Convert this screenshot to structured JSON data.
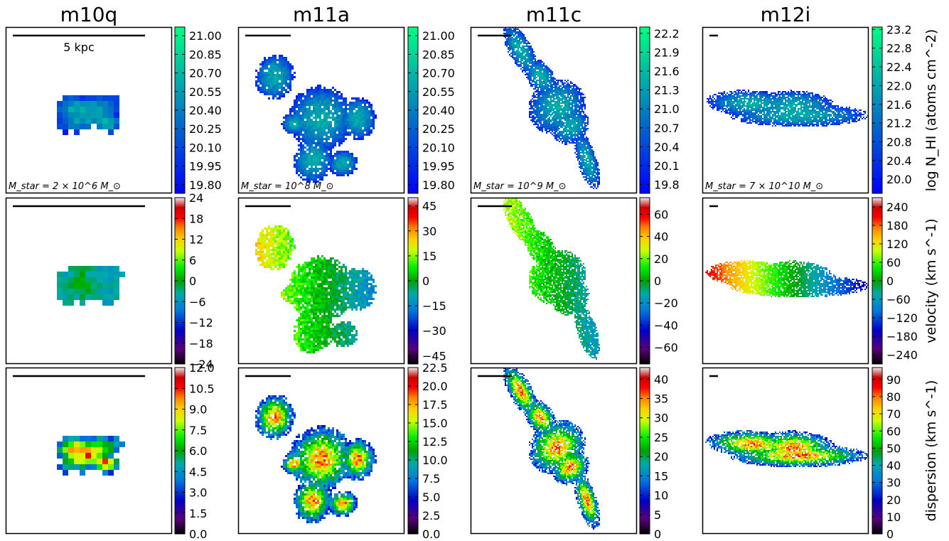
{
  "chart_data": {
    "type": "heatmap",
    "columns": [
      {
        "title": "m10q",
        "stellar_mass_label": "M_star = 2 × 10^6 M_⊙",
        "scalebar_label": "5 kpc"
      },
      {
        "title": "m11a",
        "stellar_mass_label": "M_star = 10^8 M_⊙"
      },
      {
        "title": "m11c",
        "stellar_mass_label": "M_star = 10^9 M_⊙"
      },
      {
        "title": "m12i",
        "stellar_mass_label": "M_star = 7 × 10^10 M_⊙"
      }
    ],
    "rows": [
      {
        "quantity": "column density",
        "colorbar_label": "log N_HI (atoms cm^-2)",
        "colormap": "winter",
        "colorbars": [
          {
            "min": 19.73,
            "max": 21.07,
            "ticks": [
              "21.00",
              "20.85",
              "20.70",
              "20.55",
              "20.40",
              "20.25",
              "20.10",
              "19.95",
              "19.80"
            ]
          },
          {
            "min": 19.73,
            "max": 21.07,
            "ticks": [
              "21.00",
              "20.85",
              "20.70",
              "20.55",
              "20.40",
              "20.25",
              "20.10",
              "19.95",
              "19.80"
            ]
          },
          {
            "min": 19.66,
            "max": 22.3,
            "ticks": [
              "22.2",
              "21.9",
              "21.6",
              "21.3",
              "21.0",
              "20.7",
              "20.4",
              "20.1",
              "19.8"
            ]
          },
          {
            "min": 19.7,
            "max": 23.25,
            "ticks": [
              "23.2",
              "22.8",
              "22.4",
              "22.0",
              "21.6",
              "21.2",
              "20.8",
              "20.4",
              "20.0"
            ]
          }
        ]
      },
      {
        "quantity": "velocity",
        "colorbar_label": "velocity (km s^-1)",
        "colormap": "nipy_spectral",
        "colorbars": [
          {
            "min": -24,
            "max": 24,
            "ticks": [
              "24",
              "18",
              "12",
              "6",
              "0",
              "−6",
              "−12",
              "−18",
              "−24"
            ]
          },
          {
            "min": -50,
            "max": 50,
            "ticks": [
              "45",
              "30",
              "15",
              "0",
              "−15",
              "−30",
              "−45"
            ]
          },
          {
            "min": -75,
            "max": 75,
            "ticks": [
              "60",
              "40",
              "20",
              "0",
              "−20",
              "−40",
              "−60"
            ]
          },
          {
            "min": -270,
            "max": 270,
            "ticks": [
              "240",
              "180",
              "120",
              "60",
              "0",
              "−60",
              "−120",
              "−180",
              "−240"
            ]
          }
        ]
      },
      {
        "quantity": "dispersion",
        "colorbar_label": "dispersion (km s^-1)",
        "colormap": "nipy_spectral",
        "colorbars": [
          {
            "min": 0,
            "max": 12,
            "ticks": [
              "12.0",
              "10.5",
              "9.0",
              "7.5",
              "6.0",
              "4.5",
              "3.0",
              "1.5",
              "0.0"
            ]
          },
          {
            "min": 0,
            "max": 22.5,
            "ticks": [
              "22.5",
              "20.0",
              "17.5",
              "15.0",
              "12.5",
              "10.0",
              "7.5",
              "5.0",
              "2.5",
              "0.0"
            ]
          },
          {
            "min": 0,
            "max": 43,
            "ticks": [
              "40",
              "35",
              "30",
              "25",
              "20",
              "15",
              "10",
              "5",
              "0"
            ]
          },
          {
            "min": 0,
            "max": 97,
            "ticks": [
              "90",
              "80",
              "70",
              "60",
              "50",
              "40",
              "30",
              "20",
              "10",
              "0"
            ]
          }
        ]
      }
    ],
    "colors": {
      "winter_low": "#0000ff",
      "winter_high": "#00ff80",
      "spectral_stops": [
        "#000000",
        "#7a0088",
        "#0000cc",
        "#0088dd",
        "#00aaaa",
        "#00aa00",
        "#00ff00",
        "#ffee00",
        "#ff9900",
        "#ff0000",
        "#cc0000",
        "#cccccc"
      ]
    }
  }
}
